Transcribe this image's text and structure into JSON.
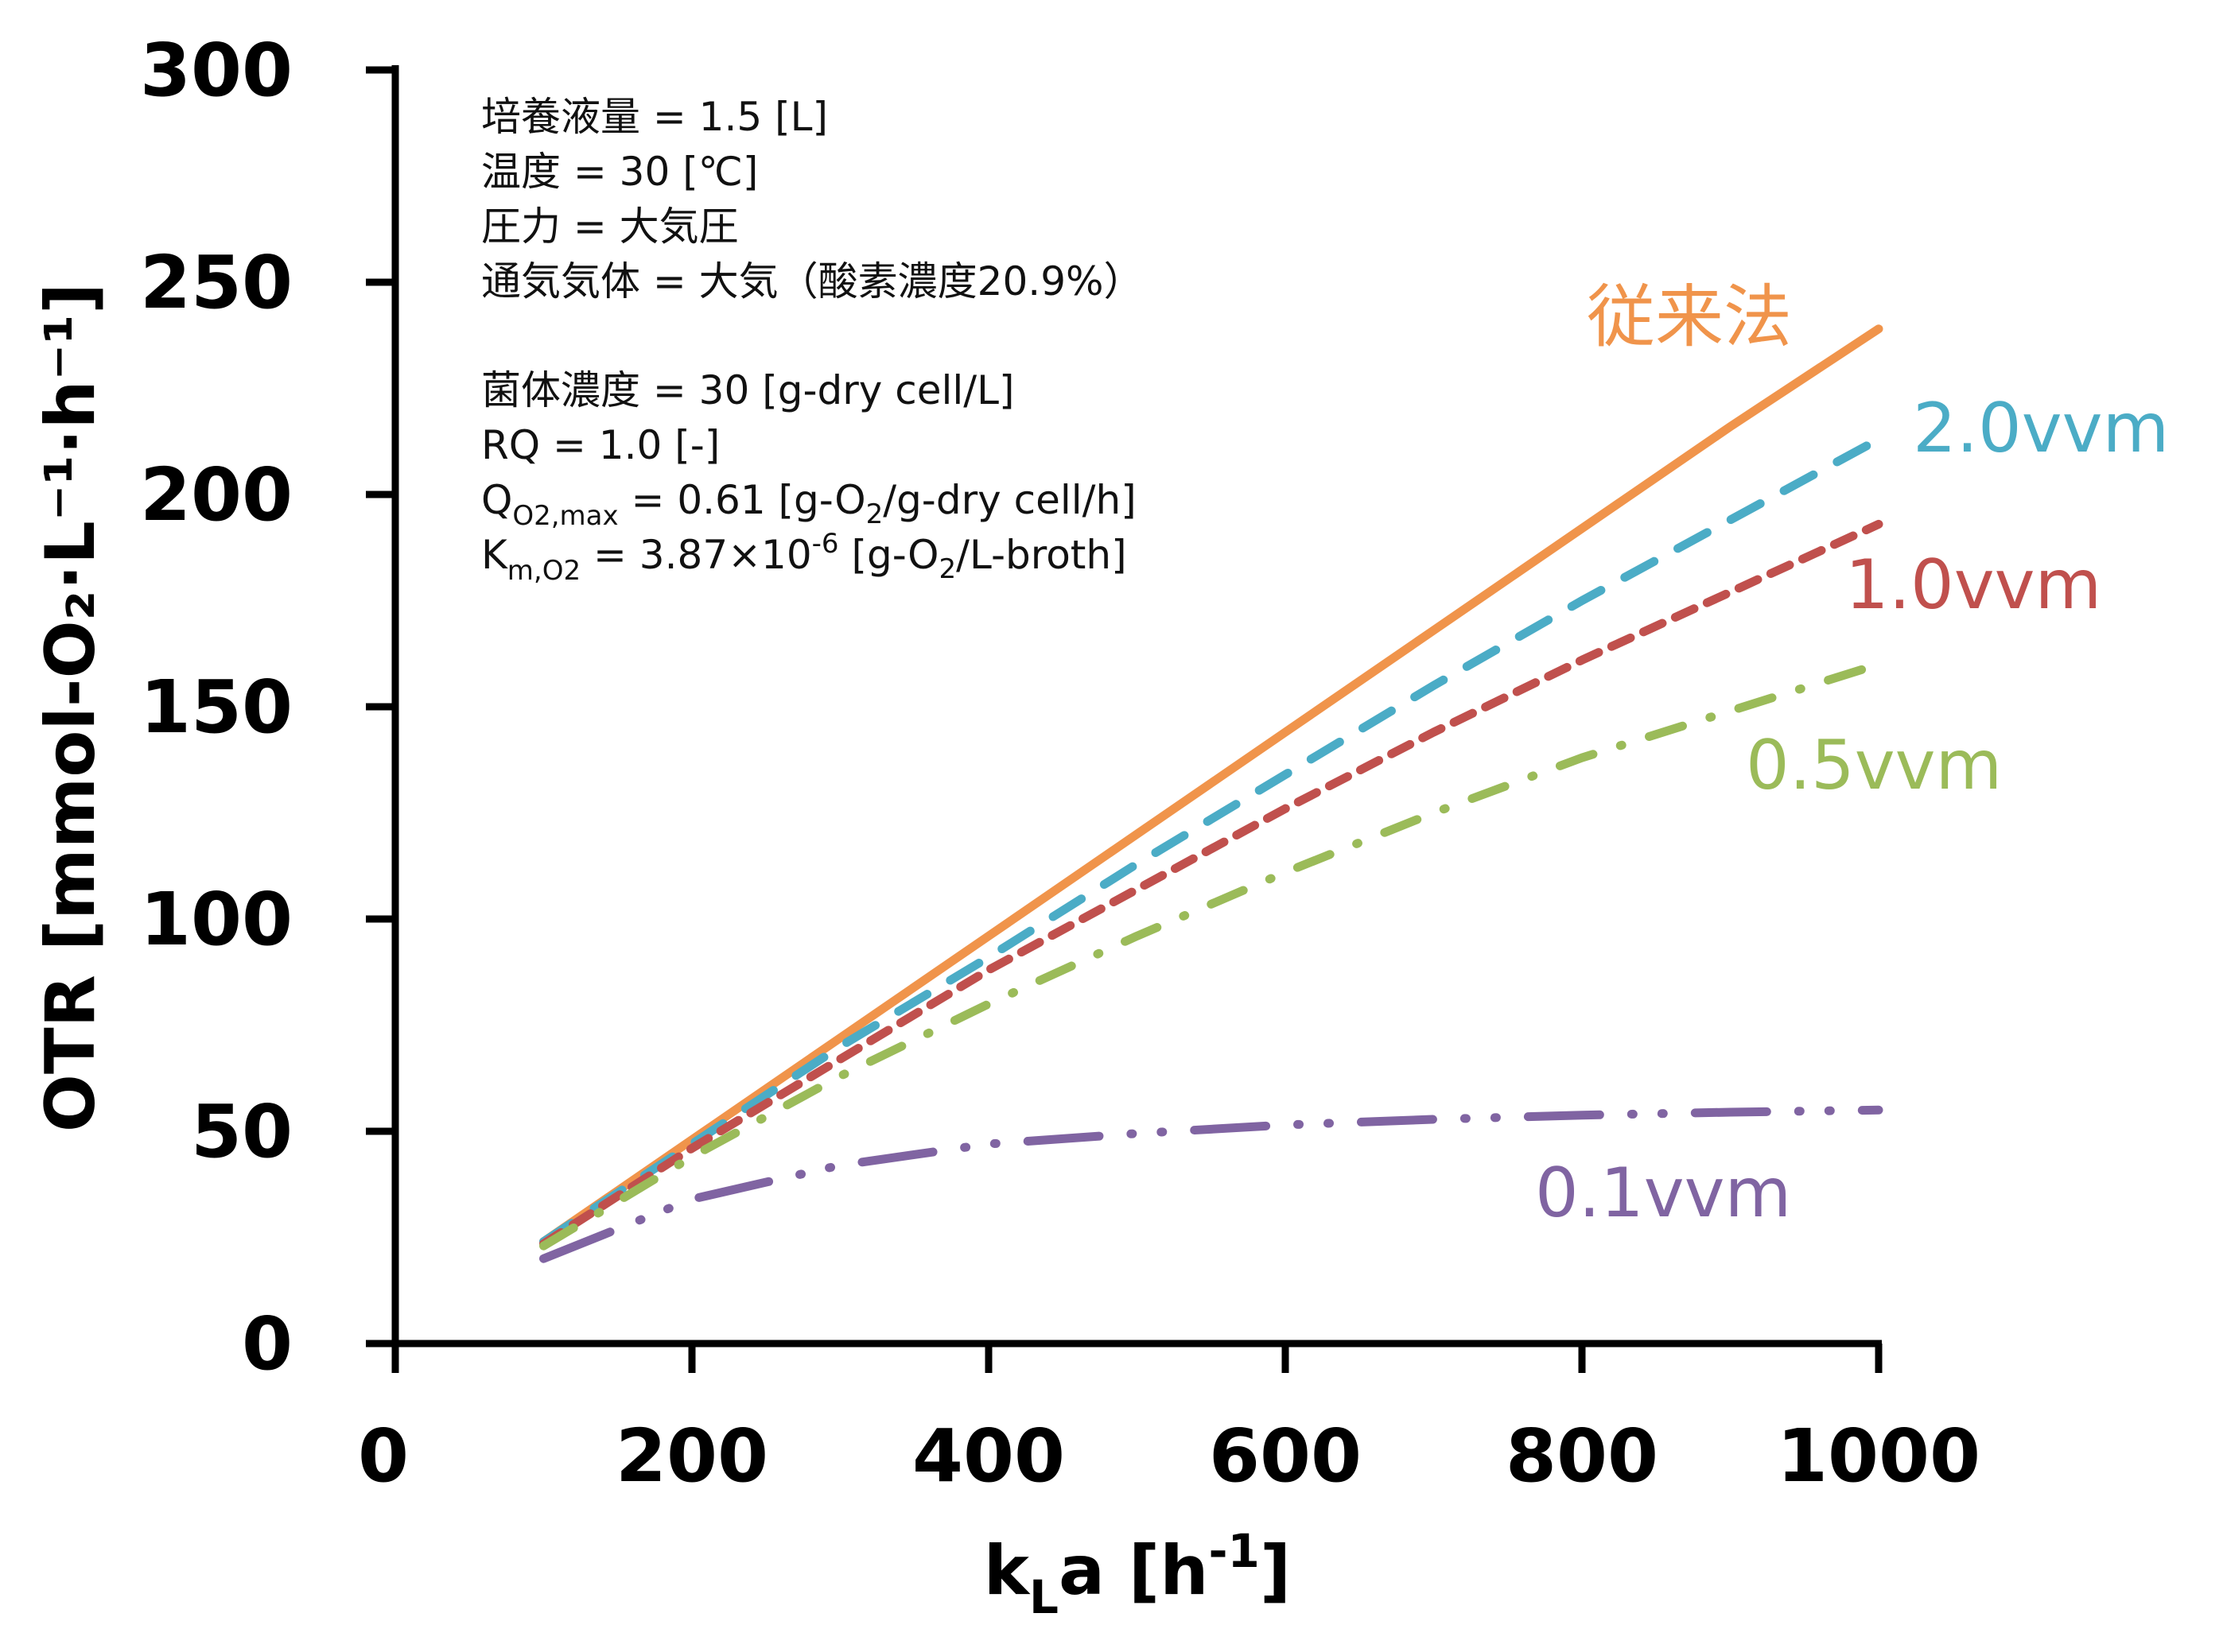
{
  "chart_data": {
    "type": "line",
    "title": "",
    "xlabel": {
      "main": "k",
      "sub": "L",
      "rest": "a [h",
      "sup": "-1",
      "close": "]"
    },
    "ylabel": "OTR [mmol-O₂·L⁻¹·h⁻¹]",
    "xlim": [
      0,
      1000
    ],
    "ylim": [
      0,
      300
    ],
    "x_ticks": [
      0,
      200,
      400,
      600,
      800,
      1000
    ],
    "y_ticks": [
      0,
      50,
      100,
      150,
      200,
      250,
      300
    ],
    "grid": false,
    "legend": "inline labels at line ends",
    "x": [
      100,
      200,
      300,
      400,
      500,
      600,
      700,
      800,
      900,
      1000
    ],
    "series": [
      {
        "name": "従来法",
        "color": "#F0944B",
        "dash": "solid",
        "values": [
          24,
          48,
          72,
          96,
          120,
          144,
          168,
          192,
          216,
          239
        ]
      },
      {
        "name": "2.0vvm",
        "color": "#4BACC6",
        "dash": "dash",
        "values": [
          24,
          47,
          70,
          91,
          113,
          134,
          155,
          175,
          194,
          213
        ]
      },
      {
        "name": "1.0vvm",
        "color": "#C0504D",
        "dash": "short-dash",
        "values": [
          23.5,
          46,
          67,
          88,
          107,
          126,
          144,
          161,
          177,
          193
        ]
      },
      {
        "name": "0.5vvm",
        "color": "#9BBB59",
        "dash": "dash-dot",
        "values": [
          23,
          44,
          63,
          80,
          96,
          111,
          125,
          138,
          149,
          160
        ]
      },
      {
        "name": "0.1vvm",
        "color": "#8064A2",
        "dash": "long-dash-dot-dot",
        "values": [
          20,
          34,
          42,
          47,
          49.5,
          51.5,
          52.8,
          53.8,
          54.5,
          55
        ]
      }
    ],
    "annotations": {
      "conditions_block_1": [
        "培養液量 = 1.5 [L]",
        "温度 = 30 [℃]",
        "圧力  = 大気圧",
        "通気気体 = 大気（酸素濃度20.9%）"
      ],
      "conditions_block_2": [
        {
          "text": "菌体濃度 = 30 [g-dry cell/L]"
        },
        {
          "text": "RQ = 1.0 [-]"
        },
        {
          "main": "Q",
          "sub": "O2,max",
          "rest": " = 0.61 [g-O",
          "sub2": "2",
          "rest2": "/g-dry cell/h]"
        },
        {
          "main": "K",
          "sub": "m,O2",
          "rest": " = 3.87×10",
          "sup": "-6",
          "rest2": " [g-O",
          "sub2": "2",
          "rest3": "/L-broth]"
        }
      ]
    }
  }
}
